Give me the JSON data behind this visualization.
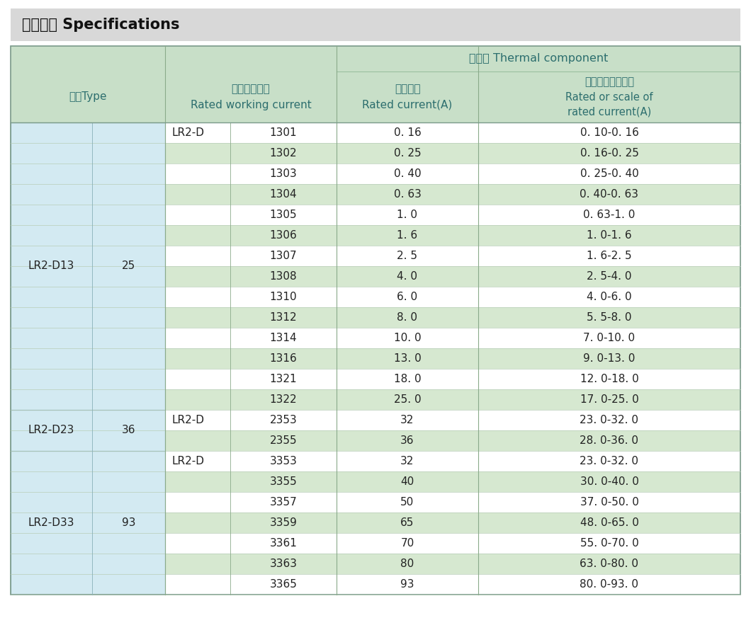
{
  "title": "技术参数 Specifications",
  "title_bg": "#d8d8d8",
  "header_bg": "#c8dfc8",
  "left_col_bg": "#d3eaf2",
  "white_row_bg": "#ffffff",
  "green_row_bg": "#d6e8d0",
  "text_dark": "#2c6e6e",
  "text_black": "#222222",
  "rows": [
    {
      "model": "LR2-D13",
      "current": "25",
      "prefix": "LR2-D",
      "code": "1301",
      "rated": "0. 16",
      "range": "0. 10-0. 16",
      "green": false
    },
    {
      "model": "",
      "current": "",
      "prefix": "",
      "code": "1302",
      "rated": "0. 25",
      "range": "0. 16-0. 25",
      "green": true
    },
    {
      "model": "",
      "current": "",
      "prefix": "",
      "code": "1303",
      "rated": "0. 40",
      "range": "0. 25-0. 40",
      "green": false
    },
    {
      "model": "",
      "current": "",
      "prefix": "",
      "code": "1304",
      "rated": "0. 63",
      "range": "0. 40-0. 63",
      "green": true
    },
    {
      "model": "",
      "current": "",
      "prefix": "",
      "code": "1305",
      "rated": "1. 0",
      "range": "0. 63-1. 0",
      "green": false
    },
    {
      "model": "",
      "current": "",
      "prefix": "",
      "code": "1306",
      "rated": "1. 6",
      "range": "1. 0-1. 6",
      "green": true
    },
    {
      "model": "",
      "current": "",
      "prefix": "",
      "code": "1307",
      "rated": "2. 5",
      "range": "1. 6-2. 5",
      "green": false
    },
    {
      "model": "",
      "current": "",
      "prefix": "",
      "code": "1308",
      "rated": "4. 0",
      "range": "2. 5-4. 0",
      "green": true
    },
    {
      "model": "",
      "current": "",
      "prefix": "",
      "code": "1310",
      "rated": "6. 0",
      "range": "4. 0-6. 0",
      "green": false
    },
    {
      "model": "",
      "current": "",
      "prefix": "",
      "code": "1312",
      "rated": "8. 0",
      "range": "5. 5-8. 0",
      "green": true
    },
    {
      "model": "",
      "current": "",
      "prefix": "",
      "code": "1314",
      "rated": "10. 0",
      "range": "7. 0-10. 0",
      "green": false
    },
    {
      "model": "",
      "current": "",
      "prefix": "",
      "code": "1316",
      "rated": "13. 0",
      "range": "9. 0-13. 0",
      "green": true
    },
    {
      "model": "",
      "current": "",
      "prefix": "",
      "code": "1321",
      "rated": "18. 0",
      "range": "12. 0-18. 0",
      "green": false
    },
    {
      "model": "",
      "current": "",
      "prefix": "",
      "code": "1322",
      "rated": "25. 0",
      "range": "17. 0-25. 0",
      "green": true
    },
    {
      "model": "LR2-D23",
      "current": "36",
      "prefix": "LR2-D",
      "code": "2353",
      "rated": "32",
      "range": "23. 0-32. 0",
      "green": false
    },
    {
      "model": "",
      "current": "",
      "prefix": "",
      "code": "2355",
      "rated": "36",
      "range": "28. 0-36. 0",
      "green": true
    },
    {
      "model": "LR2-D33",
      "current": "93",
      "prefix": "LR2-D",
      "code": "3353",
      "rated": "32",
      "range": "23. 0-32. 0",
      "green": false
    },
    {
      "model": "",
      "current": "",
      "prefix": "",
      "code": "3355",
      "rated": "40",
      "range": "30. 0-40. 0",
      "green": true
    },
    {
      "model": "",
      "current": "",
      "prefix": "",
      "code": "3357",
      "rated": "50",
      "range": "37. 0-50. 0",
      "green": false
    },
    {
      "model": "",
      "current": "",
      "prefix": "",
      "code": "3359",
      "rated": "65",
      "range": "48. 0-65. 0",
      "green": true
    },
    {
      "model": "",
      "current": "",
      "prefix": "",
      "code": "3361",
      "rated": "70",
      "range": "55. 0-70. 0",
      "green": false
    },
    {
      "model": "",
      "current": "",
      "prefix": "",
      "code": "3363",
      "rated": "80",
      "range": "63. 0-80. 0",
      "green": true
    },
    {
      "model": "",
      "current": "",
      "prefix": "",
      "code": "3365",
      "rated": "93",
      "range": "80. 0-93. 0",
      "green": false
    }
  ],
  "groups": [
    {
      "name": "LR2-D13",
      "current": "25",
      "start": 0,
      "end": 13
    },
    {
      "name": "LR2-D23",
      "current": "36",
      "start": 14,
      "end": 15
    },
    {
      "name": "LR2-D33",
      "current": "93",
      "start": 16,
      "end": 22
    }
  ]
}
